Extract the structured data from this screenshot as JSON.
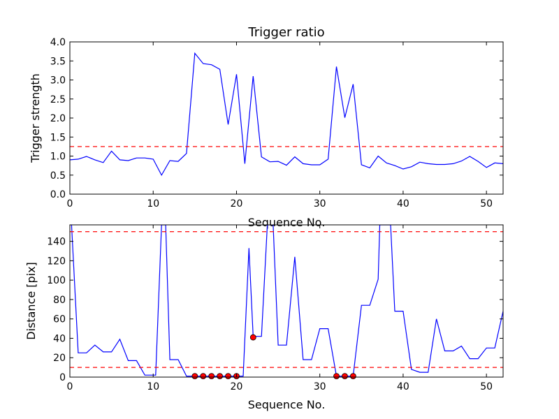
{
  "chart_data": [
    {
      "type": "line",
      "title": "Trigger ratio",
      "xlabel": "Sequence No.",
      "ylabel": "Trigger strength",
      "xlim": [
        0,
        52
      ],
      "ylim": [
        0,
        4.0
      ],
      "xticks": [
        0,
        10,
        20,
        30,
        40,
        50
      ],
      "yticks": [
        "0.0",
        "0.5",
        "1.0",
        "1.5",
        "2.0",
        "2.5",
        "3.0",
        "3.5",
        "4.0"
      ],
      "grid": false,
      "series": [
        {
          "color": "#0000ff",
          "x": [
            0,
            1,
            2,
            3,
            4,
            5,
            6,
            7,
            8,
            9,
            10,
            11,
            12,
            13,
            14,
            15,
            16,
            17,
            18,
            19,
            20,
            21,
            22,
            23,
            24,
            25,
            26,
            27,
            28,
            29,
            30,
            31,
            32,
            33,
            34,
            35,
            36,
            37,
            38,
            39,
            40,
            41,
            42,
            43,
            44,
            45,
            46,
            47,
            48,
            49,
            50,
            51,
            52
          ],
          "y": [
            0.9,
            0.92,
            0.99,
            0.9,
            0.83,
            1.13,
            0.9,
            0.88,
            0.95,
            0.95,
            0.92,
            0.5,
            0.88,
            0.86,
            1.07,
            3.7,
            3.43,
            3.4,
            3.28,
            1.83,
            3.15,
            0.8,
            3.1,
            0.98,
            0.85,
            0.86,
            0.76,
            0.98,
            0.8,
            0.77,
            0.77,
            0.92,
            3.35,
            2.01,
            2.89,
            0.77,
            0.69,
            1.0,
            0.82,
            0.75,
            0.66,
            0.72,
            0.84,
            0.8,
            0.78,
            0.78,
            0.8,
            0.87,
            0.99,
            0.86,
            0.7,
            0.82,
            0.8
          ]
        }
      ],
      "hlines": [
        {
          "y": 1.25,
          "color": "#ff0000",
          "style": "dashed"
        }
      ]
    },
    {
      "type": "line",
      "xlabel": "Sequence No.",
      "ylabel": "Distance [pix]",
      "xlim": [
        0,
        52
      ],
      "ylim": [
        0,
        157
      ],
      "xticks": [
        0,
        10,
        20,
        30,
        40,
        50
      ],
      "yticks": [
        0,
        20,
        40,
        60,
        80,
        100,
        120,
        140
      ],
      "grid": false,
      "series": [
        {
          "color": "#0000ff",
          "x": [
            0.2,
            1,
            2,
            3,
            4,
            5,
            6,
            7,
            8,
            9,
            10,
            10.3,
            11,
            11.5,
            12,
            13,
            14,
            15,
            16,
            17,
            18,
            19,
            20,
            20.8,
            21.5,
            22,
            23,
            23.7,
            24,
            24.4,
            25,
            26,
            27,
            28,
            29,
            30,
            31,
            32,
            33,
            34,
            35,
            36,
            37,
            37.2,
            38,
            38.5,
            39,
            40,
            41,
            42,
            43,
            44,
            45,
            46,
            47,
            48,
            49,
            50,
            51,
            52
          ],
          "y": [
            157,
            25,
            25,
            33,
            26,
            26,
            39,
            17,
            17,
            2,
            2,
            2,
            157,
            157,
            18,
            18,
            1,
            1,
            1,
            1,
            1,
            1,
            1,
            1,
            133,
            42,
            42,
            157,
            157,
            157,
            33,
            33,
            124,
            18,
            18,
            50,
            50,
            1,
            1,
            1,
            74,
            74,
            101,
            157,
            157,
            157,
            68,
            68,
            8,
            5,
            5,
            60,
            27,
            27,
            32,
            19,
            19,
            30,
            30,
            68
          ]
        }
      ],
      "markers": {
        "color": "#ff0000",
        "x": [
          15,
          16,
          17,
          18,
          19,
          20,
          22,
          32,
          33,
          34
        ],
        "y": [
          1,
          1,
          1,
          1,
          1,
          1,
          41,
          1,
          1,
          1
        ]
      },
      "hlines": [
        {
          "y": 150,
          "color": "#ff0000",
          "style": "dashed"
        },
        {
          "y": 10,
          "color": "#ff0000",
          "style": "dashed"
        }
      ]
    }
  ]
}
